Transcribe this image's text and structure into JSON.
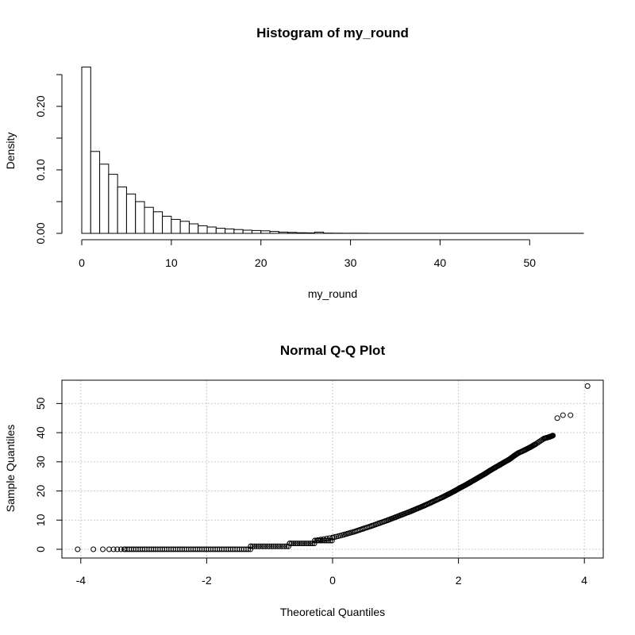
{
  "chart_data": [
    {
      "type": "bar",
      "title": "Histogram of my_round",
      "xlabel": "my_round",
      "ylabel": "Density",
      "xlim": [
        0,
        56
      ],
      "ylim": [
        0,
        0.26
      ],
      "xticks": [
        "0",
        "10",
        "20",
        "30",
        "40",
        "50"
      ],
      "yticks": [
        "0.00",
        "0.10",
        "0.20"
      ],
      "bin_width": 1,
      "bin_start": 0,
      "values": [
        0.262,
        0.129,
        0.109,
        0.093,
        0.073,
        0.062,
        0.05,
        0.041,
        0.034,
        0.027,
        0.022,
        0.019,
        0.015,
        0.012,
        0.01,
        0.008,
        0.007,
        0.006,
        0.005,
        0.0045,
        0.004,
        0.003,
        0.002,
        0.0015,
        0.001,
        0.0008,
        0.002,
        0.0004,
        0.0003,
        0.0002,
        0.0002,
        0.0002,
        0.0001,
        0.0001,
        0.0001,
        0.0001,
        0.0001,
        0.0001,
        0.0001,
        0.0001,
        0.0001,
        0.0001,
        0.0001,
        0.0001,
        0.0001,
        0.0001,
        0.0001,
        0.0001,
        0.0001,
        0.0001,
        0.0001,
        0.0001,
        0.0001,
        0.0001,
        0.0001,
        0.0001
      ],
      "grid": false
    },
    {
      "type": "scatter",
      "title": "Normal Q-Q Plot",
      "xlabel": "Theoretical Quantiles",
      "ylabel": "Sample Quantiles",
      "xlim": [
        -4.3,
        4.3
      ],
      "ylim": [
        -3,
        58
      ],
      "xticks": [
        "-4",
        "-2",
        "0",
        "2",
        "4"
      ],
      "yticks": [
        "0",
        "10",
        "20",
        "30",
        "40",
        "50"
      ],
      "grid": true,
      "marker": "open-circle",
      "points": [
        [
          -4.05,
          0
        ],
        [
          -3.8,
          0
        ],
        [
          -3.65,
          0
        ],
        [
          -3.55,
          0
        ],
        [
          -3.48,
          0
        ],
        [
          -3.42,
          0
        ],
        [
          -3.36,
          0
        ],
        [
          -3.31,
          0
        ],
        [
          -1.3,
          1
        ],
        [
          -0.68,
          2
        ],
        [
          -0.28,
          3
        ],
        [
          0.0,
          4
        ],
        [
          0.18,
          5
        ],
        [
          0.34,
          6
        ],
        [
          0.48,
          7
        ],
        [
          0.62,
          8
        ],
        [
          0.75,
          9
        ],
        [
          0.88,
          10
        ],
        [
          1.0,
          11
        ],
        [
          1.12,
          12
        ],
        [
          1.24,
          13
        ],
        [
          1.35,
          14
        ],
        [
          1.46,
          15
        ],
        [
          1.56,
          16
        ],
        [
          1.66,
          17
        ],
        [
          1.76,
          18
        ],
        [
          1.85,
          19
        ],
        [
          1.94,
          20
        ],
        [
          2.02,
          21
        ],
        [
          2.11,
          22
        ],
        [
          2.19,
          23
        ],
        [
          2.27,
          24
        ],
        [
          2.35,
          25
        ],
        [
          2.43,
          26
        ],
        [
          2.5,
          27
        ],
        [
          2.58,
          28
        ],
        [
          2.66,
          29
        ],
        [
          2.74,
          30
        ],
        [
          2.82,
          31
        ],
        [
          2.88,
          32
        ],
        [
          2.95,
          33
        ],
        [
          3.05,
          34
        ],
        [
          3.14,
          35
        ],
        [
          3.22,
          36
        ],
        [
          3.36,
          38
        ],
        [
          3.44,
          38.5
        ],
        [
          3.5,
          39
        ],
        [
          3.57,
          45
        ],
        [
          3.66,
          46
        ],
        [
          3.78,
          46
        ],
        [
          4.05,
          56
        ]
      ]
    }
  ]
}
